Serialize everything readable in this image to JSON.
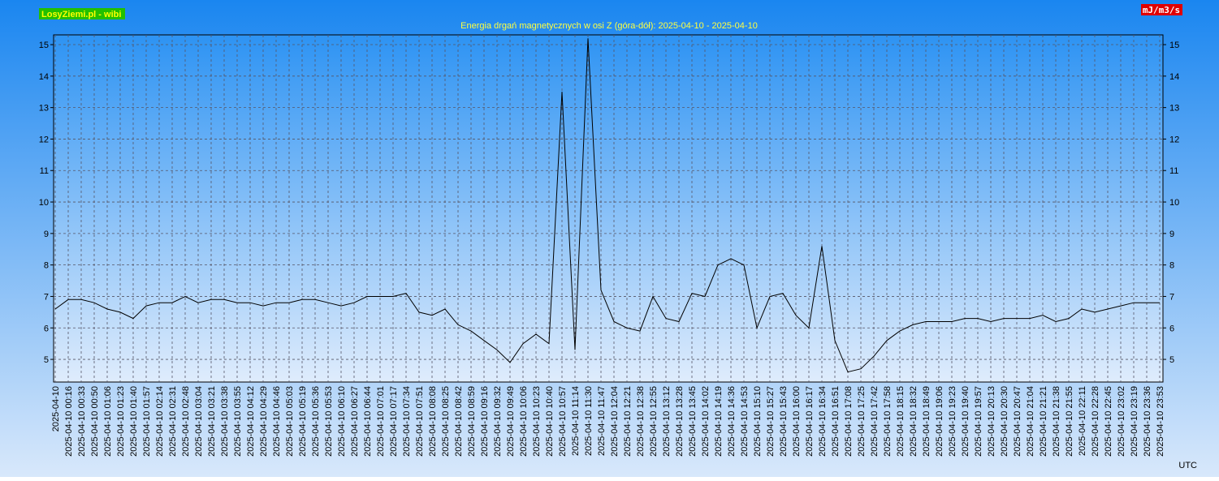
{
  "chart_data": {
    "type": "line",
    "badge": "LosyZiemi.pl - wibi",
    "title": "Energia drgań magnetycznych w osi Z (góra-dół): 2025-04-10 - 2025-04-10",
    "unit": "mJ/m3/s",
    "timezone": "UTC",
    "categories": [
      "2025-04-10",
      "2025-04-10 00:16",
      "2025-04-10 00:33",
      "2025-04-10 00:50",
      "2025-04-10 01:06",
      "2025-04-10 01:23",
      "2025-04-10 01:40",
      "2025-04-10 01:57",
      "2025-04-10 02:14",
      "2025-04-10 02:31",
      "2025-04-10 02:48",
      "2025-04-10 03:04",
      "2025-04-10 03:21",
      "2025-04-10 03:38",
      "2025-04-10 03:55",
      "2025-04-10 04:12",
      "2025-04-10 04:29",
      "2025-04-10 04:46",
      "2025-04-10 05:03",
      "2025-04-10 05:19",
      "2025-04-10 05:36",
      "2025-04-10 05:53",
      "2025-04-10 06:10",
      "2025-04-10 06:27",
      "2025-04-10 06:44",
      "2025-04-10 07:01",
      "2025-04-10 07:17",
      "2025-04-10 07:34",
      "2025-04-10 07:51",
      "2025-04-10 08:08",
      "2025-04-10 08:25",
      "2025-04-10 08:42",
      "2025-04-10 08:59",
      "2025-04-10 09:16",
      "2025-04-10 09:32",
      "2025-04-10 09:49",
      "2025-04-10 10:06",
      "2025-04-10 10:23",
      "2025-04-10 10:40",
      "2025-04-10 10:57",
      "2025-04-10 11:14",
      "2025-04-10 11:30",
      "2025-04-10 11:47",
      "2025-04-10 12:04",
      "2025-04-10 12:21",
      "2025-04-10 12:38",
      "2025-04-10 12:55",
      "2025-04-10 13:12",
      "2025-04-10 13:28",
      "2025-04-10 13:45",
      "2025-04-10 14:02",
      "2025-04-10 14:19",
      "2025-04-10 14:36",
      "2025-04-10 14:53",
      "2025-04-10 15:10",
      "2025-04-10 15:27",
      "2025-04-10 15:43",
      "2025-04-10 16:00",
      "2025-04-10 16:17",
      "2025-04-10 16:34",
      "2025-04-10 16:51",
      "2025-04-10 17:08",
      "2025-04-10 17:25",
      "2025-04-10 17:42",
      "2025-04-10 17:58",
      "2025-04-10 18:15",
      "2025-04-10 18:32",
      "2025-04-10 18:49",
      "2025-04-10 19:06",
      "2025-04-10 19:23",
      "2025-04-10 19:40",
      "2025-04-10 19:57",
      "2025-04-10 20:13",
      "2025-04-10 20:30",
      "2025-04-10 20:47",
      "2025-04-10 21:04",
      "2025-04-10 21:21",
      "2025-04-10 21:38",
      "2025-04-10 21:55",
      "2025-04-10 22:11",
      "2025-04-10 22:28",
      "2025-04-10 22:45",
      "2025-04-10 23:02",
      "2025-04-10 23:19",
      "2025-04-10 23:36",
      "2025-04-10 23:53"
    ],
    "values": [
      6.6,
      6.9,
      6.9,
      6.8,
      6.6,
      6.5,
      6.3,
      6.7,
      6.8,
      6.8,
      7.0,
      6.8,
      6.9,
      6.9,
      6.8,
      6.8,
      6.7,
      6.8,
      6.8,
      6.9,
      6.9,
      6.8,
      6.7,
      6.8,
      7.0,
      7.0,
      7.0,
      7.1,
      6.5,
      6.4,
      6.6,
      6.1,
      5.9,
      5.6,
      5.3,
      4.9,
      5.5,
      5.8,
      5.5,
      13.5,
      5.3,
      15.2,
      7.2,
      6.2,
      6.0,
      5.9,
      7.0,
      6.3,
      6.2,
      7.1,
      7.0,
      8.0,
      8.2,
      8.0,
      6.0,
      7.0,
      7.1,
      6.4,
      6.0,
      8.6,
      5.6,
      4.6,
      4.7,
      5.1,
      5.6,
      5.9,
      6.1,
      6.2,
      6.2,
      6.2,
      6.3,
      6.3,
      6.2,
      6.3,
      6.3,
      6.3,
      6.4,
      6.2,
      6.3,
      6.6,
      6.5,
      6.6,
      6.7,
      6.8,
      6.8,
      6.8
    ],
    "color": "#000000",
    "ylim": [
      4.28,
      15.31
    ],
    "yticks": [
      5,
      6,
      7,
      8,
      9,
      10,
      11,
      12,
      13,
      14,
      15
    ],
    "grid": true
  }
}
